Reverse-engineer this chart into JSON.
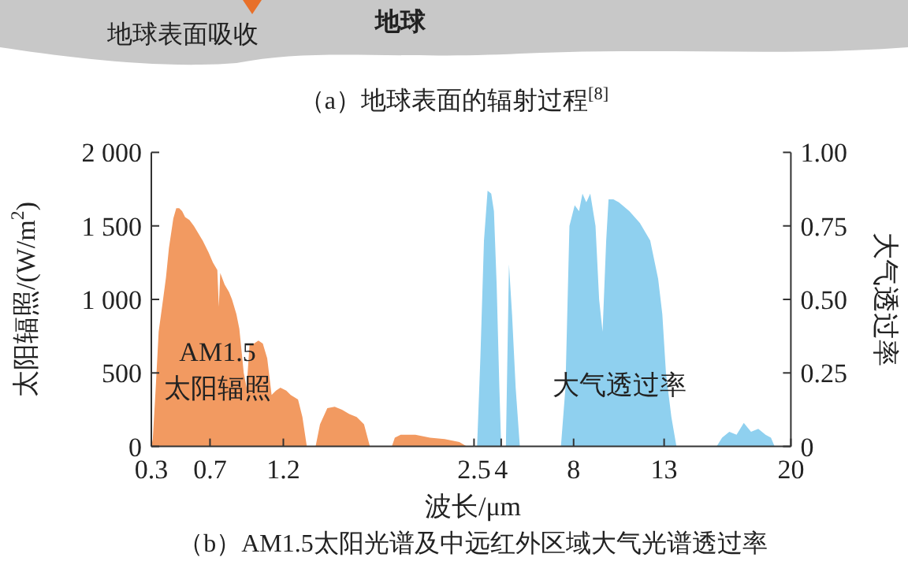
{
  "chart_data": [
    {
      "type": "area",
      "ylabel": "太阳辐照/(W/m$^{2}$)",
      "xlim": [
        0.3,
        2.5
      ],
      "xticks": [
        0.3,
        0.7,
        1.2,
        2.5
      ],
      "ylim": [
        0,
        2000
      ],
      "yticks": [
        {
          "value": 0,
          "label": "0"
        },
        {
          "value": 500,
          "label": "500"
        },
        {
          "value": 1000,
          "label": "1 000"
        },
        {
          "value": 1500,
          "label": "1 500"
        },
        {
          "value": 2000,
          "label": "2 000"
        }
      ],
      "annotations": [
        "地球表面吸收",
        "地球",
        "（a）地球表面的辐射过程$^{[8]}$",
        "AM1.5",
        "太阳辐照"
      ],
      "series": [
        {
          "color": "#f29a61",
          "x": [
            0.3,
            0.31,
            0.33,
            0.35,
            0.38,
            0.4,
            0.42,
            0.45,
            0.47,
            0.49,
            0.51,
            0.53,
            0.56,
            0.59,
            0.62,
            0.65,
            0.69,
            0.72,
            0.75,
            0.76,
            0.77,
            0.8,
            0.83,
            0.85,
            0.88,
            0.9,
            0.93,
            0.95,
            0.97,
            1.0,
            1.03,
            1.06,
            1.09,
            1.12,
            1.15,
            1.18,
            1.22,
            1.25,
            1.3,
            1.33,
            1.36,
            1.42,
            1.45,
            1.5,
            1.55,
            1.6,
            1.65,
            1.7,
            1.75,
            1.79,
            1.94,
            1.96,
            2.0,
            2.1,
            2.2,
            2.3,
            2.4,
            2.45
          ],
          "values": [
            0,
            50,
            400,
            780,
            1000,
            1150,
            1350,
            1550,
            1620,
            1620,
            1600,
            1560,
            1540,
            1500,
            1450,
            1400,
            1320,
            1250,
            1200,
            950,
            1180,
            1100,
            1050,
            1000,
            900,
            800,
            500,
            400,
            700,
            700,
            720,
            700,
            600,
            350,
            380,
            400,
            380,
            350,
            320,
            200,
            0,
            0,
            150,
            260,
            270,
            250,
            220,
            200,
            150,
            0,
            0,
            60,
            80,
            80,
            60,
            50,
            30,
            0
          ]
        }
      ]
    },
    {
      "type": "area",
      "xlabel": "波长/μm",
      "y2label": "大气透过率",
      "xlim": [
        2.5,
        20
      ],
      "xticks": [
        4,
        8,
        13,
        20
      ],
      "y2lim": [
        0,
        1
      ],
      "y2ticks": [
        {
          "value": 0,
          "label": "0"
        },
        {
          "value": 0.25,
          "label": "0.25"
        },
        {
          "value": 0.5,
          "label": "0.50"
        },
        {
          "value": 0.75,
          "label": "0.75"
        },
        {
          "value": 1,
          "label": "1.00"
        }
      ],
      "annotations": [
        "大气透过率",
        "（b）AM1.5太阳光谱及中远红外区域大气光谱透过率"
      ],
      "series": [
        {
          "color": "#8fd0ef",
          "axis": "y2",
          "x": [
            2.67,
            2.85,
            3.05,
            3.25,
            3.45,
            3.6,
            3.75,
            3.9,
            4.0,
            4.26,
            4.43,
            4.6,
            4.8,
            5.03,
            7.3,
            7.55,
            7.77,
            8.06,
            8.3,
            8.49,
            8.7,
            8.92,
            9.21,
            9.41,
            9.6,
            9.8,
            9.93,
            10.2,
            10.5,
            11.08,
            11.66,
            12.23,
            12.67,
            12.9,
            13.1,
            13.4,
            13.68,
            15.9,
            16.2,
            16.6,
            17.0,
            17.4,
            17.8,
            18.2,
            18.6,
            18.9,
            19.1
          ],
          "values": [
            0,
            0.3,
            0.7,
            0.87,
            0.86,
            0.8,
            0.55,
            0.2,
            0,
            0,
            0.62,
            0.45,
            0.2,
            0,
            0,
            0.2,
            0.75,
            0.82,
            0.8,
            0.86,
            0.83,
            0.86,
            0.75,
            0.5,
            0.39,
            0.7,
            0.84,
            0.84,
            0.83,
            0.8,
            0.76,
            0.7,
            0.57,
            0.45,
            0.25,
            0.1,
            0,
            0,
            0.03,
            0.05,
            0.04,
            0.08,
            0.05,
            0.06,
            0.04,
            0.03,
            0
          ]
        }
      ]
    }
  ]
}
